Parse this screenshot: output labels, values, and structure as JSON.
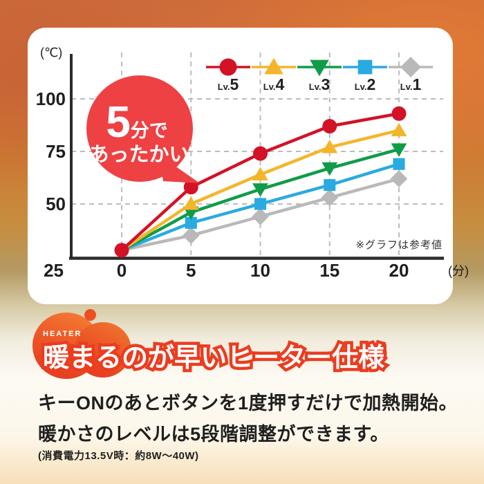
{
  "chart_data": {
    "type": "line",
    "x": [
      0,
      5,
      10,
      15,
      20
    ],
    "xticks": [
      "0",
      "5",
      "10",
      "15",
      "20"
    ],
    "yticks": [
      "100",
      "75",
      "50",
      "25"
    ],
    "x_unit": "(分)",
    "y_unit": "(℃)",
    "ylim": [
      25,
      115
    ],
    "grid": true,
    "legend_position": "top",
    "note": "※グラフは参考値",
    "series": [
      {
        "name": "Lv.5",
        "label_prefix": "Lv.",
        "label_num": "5",
        "marker": "circle",
        "color": "#d31226",
        "values": [
          28,
          58,
          74,
          87,
          93
        ]
      },
      {
        "name": "Lv.4",
        "label_prefix": "Lv.",
        "label_num": "4",
        "marker": "triangle-up",
        "color": "#f3b62b",
        "values": [
          28,
          50,
          64,
          77,
          85
        ]
      },
      {
        "name": "Lv.3",
        "label_prefix": "Lv.",
        "label_num": "3",
        "marker": "triangle-down",
        "color": "#0f9c49",
        "values": [
          28,
          46,
          57,
          67,
          76
        ]
      },
      {
        "name": "Lv.2",
        "label_prefix": "Lv.",
        "label_num": "2",
        "marker": "square",
        "color": "#29aae1",
        "values": [
          28,
          41,
          50,
          59,
          69
        ]
      },
      {
        "name": "Lv.1",
        "label_prefix": "Lv.",
        "label_num": "1",
        "marker": "diamond",
        "color": "#b9b9b9",
        "values": [
          28,
          35,
          44,
          53,
          62
        ]
      }
    ],
    "annotation_bubble": {
      "line1_big": "5",
      "line1_small": "分で",
      "line2": "あったかい",
      "color": "#ee4143"
    }
  },
  "heading": {
    "eyebrow": "HEATER",
    "title": "暖まるのが早いヒーター仕様",
    "accent_color": "#ea3d20"
  },
  "body": {
    "line1": "キーONのあとボタンを1度押すだけで加熱開始。",
    "line2": "暖かさのレベルは5段階調整ができます。",
    "note": "(消費電力13.5V時：約8W〜40W)"
  }
}
